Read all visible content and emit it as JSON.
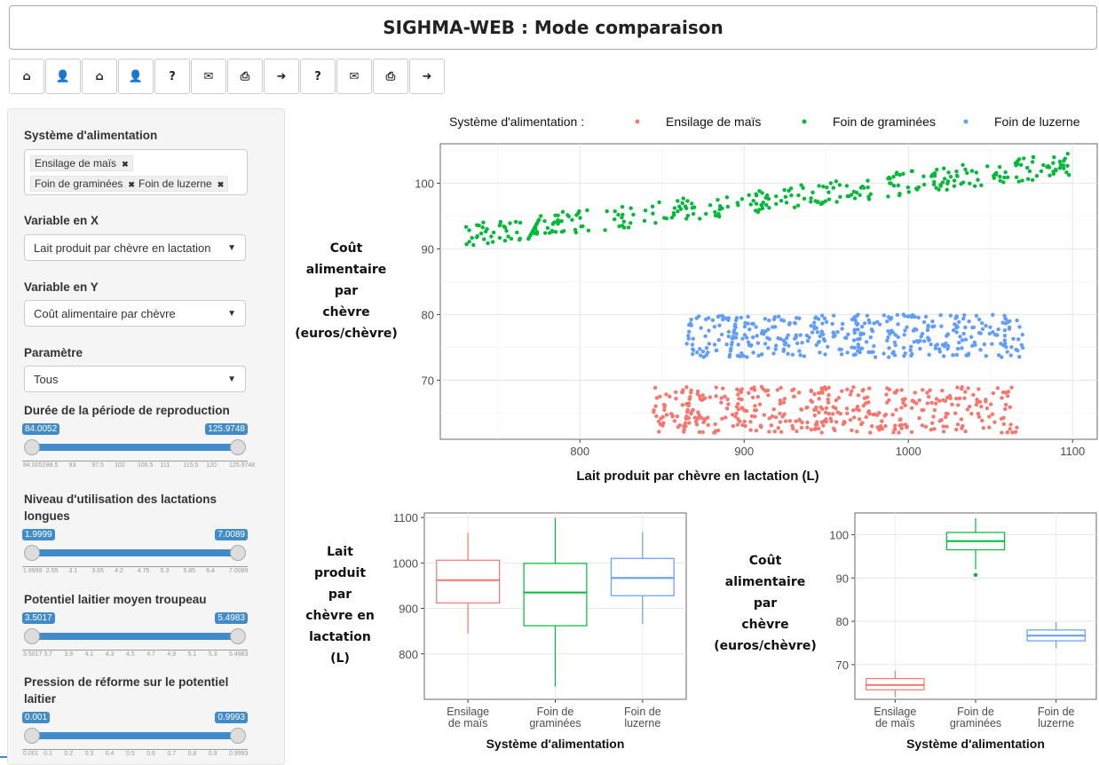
{
  "header": {
    "title": "SIGHMA-WEB : Mode comparaison"
  },
  "toolbar": {
    "buttons": [
      {
        "icon": "home-icon",
        "glyph": "⌂"
      },
      {
        "icon": "user-icon",
        "glyph": "👤"
      },
      {
        "icon": "home-icon",
        "glyph": "⌂"
      },
      {
        "icon": "user-icon",
        "glyph": "👤"
      },
      {
        "icon": "help-icon",
        "glyph": "?"
      },
      {
        "icon": "envelope-icon",
        "glyph": "✉"
      },
      {
        "icon": "print-icon",
        "glyph": "⎙"
      },
      {
        "icon": "sign-out-icon",
        "glyph": "➜"
      },
      {
        "icon": "help-icon",
        "glyph": "?"
      },
      {
        "icon": "envelope-icon",
        "glyph": "✉"
      },
      {
        "icon": "print-icon",
        "glyph": "⎙"
      },
      {
        "icon": "sign-out-icon",
        "glyph": "➜"
      }
    ]
  },
  "sidebar": {
    "systeme_label": "Système d'alimentation",
    "systeme_tags": [
      "Ensilage de maïs",
      "Foin de graminées",
      "Foin de luzerne"
    ],
    "var_x_label": "Variable en X",
    "var_x_value": "Lait produit par chèvre en lactation",
    "var_y_label": "Variable en Y",
    "var_y_value": "Coût alimentaire par chèvre",
    "parametre_label": "Paramètre",
    "parametre_value": "Tous",
    "sliders": [
      {
        "label": "Durée de la période de reproduction",
        "min_label": "84.0052",
        "max_label": "125.9748",
        "ticks": [
          "84.0052",
          "88.5",
          "93",
          "97.5",
          "102",
          "106.5",
          "111",
          "115.5",
          "120",
          "125.9748"
        ]
      },
      {
        "label": "Niveau d'utilisation des lactations longues",
        "min_label": "1.9999",
        "max_label": "7.0089",
        "ticks": [
          "1.9999",
          "2.55",
          "3.1",
          "3.65",
          "4.2",
          "4.75",
          "5.3",
          "5.85",
          "6.4",
          "7.0089"
        ]
      },
      {
        "label": "Potentiel laitier moyen troupeau",
        "min_label": "3.5017",
        "max_label": "5.4983",
        "ticks": [
          "3.5017",
          "3.7",
          "3.9",
          "4.1",
          "4.3",
          "4.5",
          "4.7",
          "4.9",
          "5.1",
          "5.3",
          "5.4983"
        ]
      },
      {
        "label": "Pression de réforme sur le potentiel laitier",
        "min_label": "0.001",
        "max_label": "0.9993",
        "ticks": [
          "0.001",
          "0.1",
          "0.2",
          "0.3",
          "0.4",
          "0.5",
          "0.6",
          "0.7",
          "0.8",
          "0.9",
          "0.9993"
        ]
      }
    ]
  },
  "colors": {
    "mais": "#f8766d",
    "graminees": "#00ba38",
    "luzerne": "#619cff",
    "accent": "#428bca"
  },
  "chart_data": [
    {
      "type": "scatter",
      "legend_title": "Système d'alimentation :",
      "legend_position": "top",
      "xlabel": "Lait produit par chèvre en lactation (L)",
      "ylabel": "Coût alimentaire par chèvre (euros/chèvre)",
      "xlim": [
        715,
        1115
      ],
      "ylim": [
        61,
        106
      ],
      "xticks": [
        800,
        900,
        1000,
        1100
      ],
      "yticks": [
        70,
        80,
        90,
        100
      ],
      "series": [
        {
          "name": "Ensilage de maïs",
          "color": "#f8766d",
          "x_range": [
            845,
            1068
          ],
          "y_range": [
            62,
            69
          ],
          "n": 420
        },
        {
          "name": "Foin de graminées",
          "color": "#00ba38",
          "x_range": [
            730,
            1100
          ],
          "y_range": [
            90.5,
            104
          ],
          "n": 330
        },
        {
          "name": "Foin de luzerne",
          "color": "#619cff",
          "x_range": [
            865,
            1070
          ],
          "y_range": [
            73.5,
            80
          ],
          "n": 400
        }
      ]
    },
    {
      "type": "box",
      "xlabel": "Système d'alimentation",
      "ylabel": "Lait produit par chèvre en lactation (L)",
      "categories": [
        "Ensilage de maïs",
        "Foin de graminées",
        "Foin de luzerne"
      ],
      "ylim": [
        700,
        1110
      ],
      "yticks": [
        800,
        900,
        1000,
        1100
      ],
      "boxes": [
        {
          "min": 845,
          "q1": 912,
          "median": 962,
          "q3": 1006,
          "max": 1066,
          "color": "#f8766d"
        },
        {
          "min": 728,
          "q1": 862,
          "median": 935,
          "q3": 999,
          "max": 1099,
          "color": "#00ba38"
        },
        {
          "min": 866,
          "q1": 928,
          "median": 967,
          "q3": 1010,
          "max": 1068,
          "color": "#619cff"
        }
      ]
    },
    {
      "type": "box",
      "xlabel": "Système d'alimentation",
      "ylabel": "Coût alimentaire par chèvre (euros/chèvre)",
      "categories": [
        "Ensilage de maïs",
        "Foin de graminées",
        "Foin de luzerne"
      ],
      "ylim": [
        62,
        105
      ],
      "yticks": [
        70,
        80,
        90,
        100
      ],
      "boxes": [
        {
          "min": 62.5,
          "q1": 64.2,
          "median": 65.3,
          "q3": 66.8,
          "max": 68.6,
          "color": "#f8766d"
        },
        {
          "min": 92,
          "q1": 96.5,
          "median": 98.5,
          "q3": 100.5,
          "max": 103.8,
          "color": "#00ba38",
          "outliers": [
            90.7
          ]
        },
        {
          "min": 73.8,
          "q1": 75.5,
          "median": 76.7,
          "q3": 78,
          "max": 79.8,
          "color": "#619cff"
        }
      ]
    }
  ],
  "plots": {
    "scatter_ylabel_lines": [
      "Coût",
      "alimentaire",
      "par",
      "chèvre",
      "(euros/chèvre)"
    ],
    "box1_ylabel_lines": [
      "Lait",
      "produit",
      "par",
      "chèvre en",
      "lactation",
      "(L)"
    ],
    "box2_ylabel_lines": [
      "Coût",
      "alimentaire",
      "par",
      "chèvre",
      "(euros/chèvre)"
    ],
    "category_lines": [
      [
        "Ensilage",
        "de maïs"
      ],
      [
        "Foin de",
        "graminées"
      ],
      [
        "Foin de",
        "luzerne"
      ]
    ]
  }
}
